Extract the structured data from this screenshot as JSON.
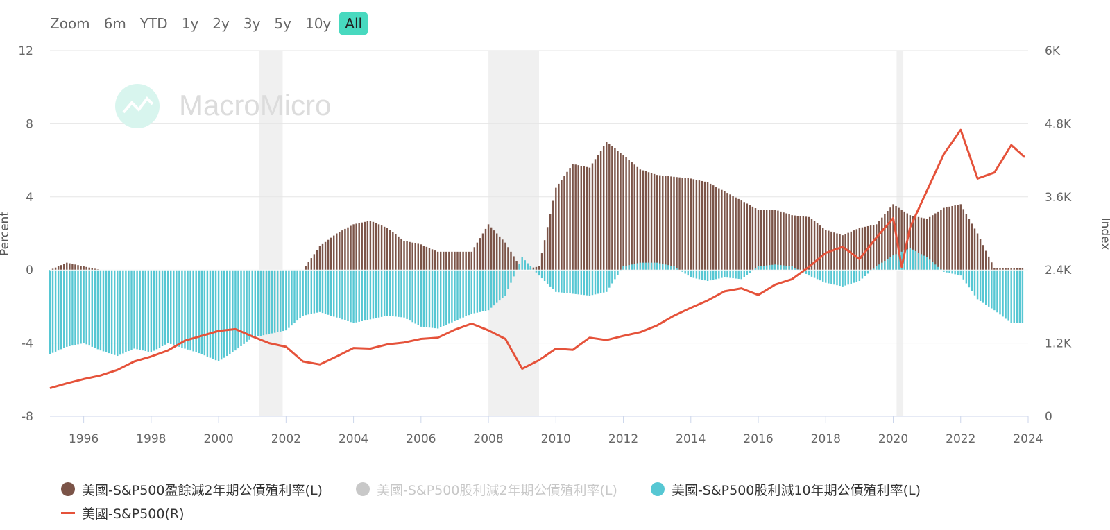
{
  "zoom": {
    "label": "Zoom",
    "buttons": [
      "6m",
      "YTD",
      "1y",
      "2y",
      "3y",
      "5y",
      "10y",
      "All"
    ],
    "active": "All"
  },
  "watermark": "MacroMicro",
  "colors": {
    "earnings": "#7b5448",
    "dividend2y": "#c8c8c8",
    "dividend10y": "#56c7d3",
    "sp500": "#e5523a",
    "recession": "#f0f0f0",
    "grid": "#e6e6e6",
    "active_zoom": "#48d9bf"
  },
  "chart_data": {
    "type": "bar+line",
    "left_axis": {
      "title": "Percent",
      "ylim": [
        -8,
        12
      ],
      "ticks": [
        "12",
        "8",
        "4",
        "0",
        "-4",
        "-8"
      ],
      "tick_values": [
        12,
        8,
        4,
        0,
        -4,
        -8
      ]
    },
    "right_axis": {
      "title": "Index",
      "ylim": [
        0,
        6000
      ],
      "ticks": [
        "6K",
        "4.8K",
        "3.6K",
        "2.4K",
        "1.2K",
        "0"
      ],
      "tick_values": [
        6000,
        4800,
        3600,
        2400,
        1200,
        0
      ]
    },
    "x_axis": {
      "range": [
        1995.0,
        2024.0
      ],
      "ticks": [
        "1996",
        "1998",
        "2000",
        "2002",
        "2004",
        "2006",
        "2008",
        "2010",
        "2012",
        "2014",
        "2016",
        "2018",
        "2020",
        "2022",
        "2024"
      ]
    },
    "grid": true,
    "recessions": [
      [
        2001.2,
        2001.9
      ],
      [
        2008.0,
        2009.5
      ],
      [
        2020.1,
        2020.3
      ]
    ],
    "legend": [
      {
        "name": "美國-S&P500盈餘減2年期公債殖利率(L)",
        "marker": "dot",
        "color_key": "earnings",
        "visible": true
      },
      {
        "name": "美國-S&P500股利減2年期公債殖利率(L)",
        "marker": "dot",
        "color_key": "dividend2y",
        "visible": false
      },
      {
        "name": "美國-S&P500股利減10年期公債殖利率(L)",
        "marker": "dot",
        "color_key": "dividend10y",
        "visible": true
      },
      {
        "name": "美國-S&P500(R)",
        "marker": "line",
        "color_key": "sp500",
        "visible": true
      }
    ],
    "series": [
      {
        "name": "美國-S&P500盈餘減2年期公債殖利率(L)",
        "kind": "bar",
        "x": [
          1995.0,
          1995.5,
          1996.0,
          1996.5,
          1997.0,
          1997.5,
          1998.0,
          1998.5,
          1999.0,
          1999.5,
          2000.0,
          2000.5,
          2001.0,
          2001.5,
          2002.0,
          2002.5,
          2003.0,
          2003.5,
          2004.0,
          2004.5,
          2005.0,
          2005.5,
          2006.0,
          2006.5,
          2007.0,
          2007.5,
          2008.0,
          2008.5,
          2009.0,
          2009.5,
          2010.0,
          2010.5,
          2011.0,
          2011.5,
          2012.0,
          2012.5,
          2013.0,
          2013.5,
          2014.0,
          2014.5,
          2015.0,
          2015.5,
          2016.0,
          2016.5,
          2017.0,
          2017.5,
          2018.0,
          2018.5,
          2019.0,
          2019.5,
          2020.0,
          2020.5,
          2021.0,
          2021.5,
          2022.0,
          2022.5,
          2023.0,
          2023.5
        ],
        "y": [
          0.0,
          0.4,
          0.2,
          0.0,
          0.0,
          0.0,
          0.0,
          0.0,
          0.0,
          0.0,
          0.0,
          0.0,
          0.0,
          0.0,
          0.0,
          0.0,
          1.3,
          2.0,
          2.5,
          2.7,
          2.3,
          1.6,
          1.4,
          1.0,
          1.0,
          1.0,
          2.5,
          1.5,
          0.0,
          0.2,
          4.5,
          5.8,
          5.6,
          7.0,
          6.3,
          5.5,
          5.2,
          5.1,
          5.0,
          4.8,
          4.3,
          3.8,
          3.3,
          3.3,
          3.0,
          2.9,
          2.2,
          1.9,
          2.3,
          2.5,
          3.6,
          3.0,
          2.8,
          3.4,
          3.6,
          2.0,
          0.1,
          0.1
        ]
      },
      {
        "name": "美國-S&P500股利減10年期公債殖利率(L)",
        "kind": "bar",
        "x": [
          1995.0,
          1995.5,
          1996.0,
          1996.5,
          1997.0,
          1997.5,
          1998.0,
          1998.5,
          1999.0,
          1999.5,
          2000.0,
          2000.5,
          2001.0,
          2001.5,
          2002.0,
          2002.5,
          2003.0,
          2003.5,
          2004.0,
          2004.5,
          2005.0,
          2005.5,
          2006.0,
          2006.5,
          2007.0,
          2007.5,
          2008.0,
          2008.5,
          2009.0,
          2009.5,
          2010.0,
          2010.5,
          2011.0,
          2011.5,
          2012.0,
          2012.5,
          2013.0,
          2013.5,
          2014.0,
          2014.5,
          2015.0,
          2015.5,
          2016.0,
          2016.5,
          2017.0,
          2017.5,
          2018.0,
          2018.5,
          2019.0,
          2019.5,
          2020.0,
          2020.5,
          2021.0,
          2021.5,
          2022.0,
          2022.5,
          2023.0,
          2023.5
        ],
        "y": [
          -4.6,
          -4.2,
          -4.0,
          -4.4,
          -4.7,
          -4.3,
          -4.5,
          -4.0,
          -4.3,
          -4.6,
          -5.0,
          -4.4,
          -3.7,
          -3.5,
          -3.3,
          -2.5,
          -2.3,
          -2.6,
          -2.9,
          -2.7,
          -2.5,
          -2.6,
          -3.1,
          -3.2,
          -2.8,
          -2.4,
          -2.2,
          -1.4,
          0.7,
          -0.3,
          -1.2,
          -1.3,
          -1.4,
          -1.2,
          0.2,
          0.4,
          0.4,
          0.2,
          -0.4,
          -0.6,
          -0.4,
          -0.5,
          0.2,
          0.3,
          0.2,
          -0.3,
          -0.7,
          -0.9,
          -0.6,
          0.2,
          0.8,
          1.2,
          0.7,
          -0.1,
          -0.3,
          -1.6,
          -2.2,
          -2.9
        ]
      },
      {
        "name": "美國-S&P500(R)",
        "kind": "line",
        "x": [
          1995.0,
          1995.5,
          1996.0,
          1996.5,
          1997.0,
          1997.5,
          1998.0,
          1998.5,
          1999.0,
          1999.5,
          2000.0,
          2000.5,
          2001.0,
          2001.5,
          2002.0,
          2002.5,
          2003.0,
          2003.5,
          2004.0,
          2004.5,
          2005.0,
          2005.5,
          2006.0,
          2006.5,
          2007.0,
          2007.5,
          2008.0,
          2008.5,
          2009.0,
          2009.5,
          2010.0,
          2010.5,
          2011.0,
          2011.5,
          2012.0,
          2012.5,
          2013.0,
          2013.5,
          2014.0,
          2014.5,
          2015.0,
          2015.5,
          2016.0,
          2016.5,
          2017.0,
          2017.5,
          2018.0,
          2018.5,
          2019.0,
          2019.5,
          2020.0,
          2020.25,
          2020.5,
          2021.0,
          2021.5,
          2022.0,
          2022.5,
          2023.0,
          2023.5,
          2023.9
        ],
        "y": [
          460,
          540,
          610,
          670,
          760,
          900,
          980,
          1080,
          1240,
          1320,
          1400,
          1430,
          1310,
          1200,
          1140,
          900,
          850,
          980,
          1120,
          1110,
          1180,
          1210,
          1270,
          1290,
          1420,
          1520,
          1410,
          1270,
          780,
          920,
          1110,
          1090,
          1290,
          1250,
          1320,
          1380,
          1490,
          1650,
          1780,
          1900,
          2050,
          2100,
          1990,
          2160,
          2250,
          2450,
          2680,
          2780,
          2580,
          2930,
          3250,
          2450,
          3100,
          3700,
          4300,
          4700,
          3900,
          4000,
          4450,
          4250
        ]
      }
    ]
  }
}
